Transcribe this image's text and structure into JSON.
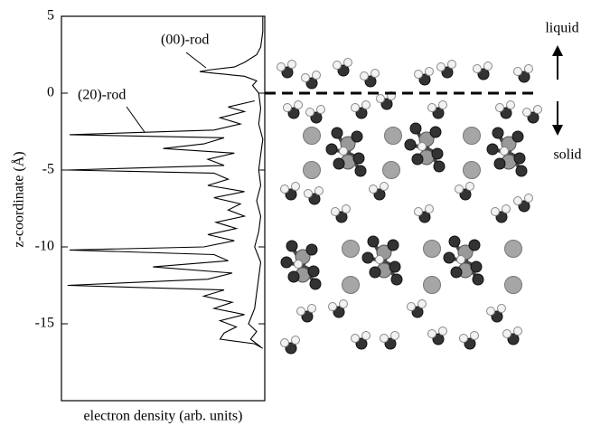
{
  "chart_data": {
    "type": "line",
    "orientation": "vertical",
    "ylabel": "z-coordinate (Å)",
    "xlabel": "electron density (arb. units)",
    "ylim": [
      -20,
      5
    ],
    "yticks": [
      5,
      0,
      -5,
      -10,
      -15
    ],
    "xlim": [
      0,
      1
    ],
    "series": [
      {
        "name": "(00)-rod",
        "color": "#000000",
        "y": [
          5,
          4,
          3,
          2.5,
          2,
          1.7,
          1.5,
          1.4,
          1.3,
          1.1,
          0.8,
          0.5,
          0,
          -1,
          -2,
          -3,
          -4,
          -5,
          -6,
          -7,
          -8,
          -9,
          -10,
          -11,
          -12,
          -13,
          -14,
          -15,
          -15.5,
          -16,
          -16.5
        ],
        "values": [
          0.99,
          0.99,
          0.98,
          0.96,
          0.9,
          0.85,
          0.72,
          0.68,
          0.75,
          0.9,
          0.96,
          0.94,
          0.97,
          0.98,
          0.97,
          0.99,
          0.98,
          0.97,
          0.98,
          0.96,
          0.98,
          0.97,
          0.95,
          0.98,
          0.97,
          0.96,
          0.95,
          0.92,
          0.96,
          0.93,
          0.98
        ]
      },
      {
        "name": "(20)-rod",
        "color": "#000000",
        "y": [
          -0.5,
          -0.9,
          -1.2,
          -1.6,
          -2.0,
          -2.4,
          -2.7,
          -2.9,
          -3.3,
          -3.6,
          -3.9,
          -4.3,
          -4.7,
          -5.0,
          -5.2,
          -5.6,
          -6.0,
          -6.4,
          -6.8,
          -7.2,
          -7.6,
          -8.0,
          -8.4,
          -8.8,
          -9.2,
          -9.6,
          -10.0,
          -10.2,
          -10.5,
          -10.9,
          -11.3,
          -11.7,
          -12.1,
          -12.5,
          -12.8,
          -13.2,
          -13.6,
          -14.0,
          -14.4,
          -14.8,
          -15.2,
          -15.6,
          -16.0,
          -16.3,
          -16.6
        ],
        "values": [
          0.95,
          0.82,
          0.9,
          0.78,
          0.88,
          0.75,
          0.04,
          0.8,
          0.7,
          0.5,
          0.85,
          0.72,
          0.8,
          0.03,
          0.75,
          0.82,
          0.72,
          0.9,
          0.75,
          0.88,
          0.82,
          0.9,
          0.76,
          0.86,
          0.72,
          0.85,
          0.7,
          0.04,
          0.75,
          0.82,
          0.45,
          0.84,
          0.72,
          0.03,
          0.8,
          0.7,
          0.84,
          0.75,
          0.9,
          0.78,
          0.86,
          0.8,
          0.78,
          0.95,
          0.99
        ]
      }
    ],
    "annotations": [
      {
        "text": "(00)-rod"
      },
      {
        "text": "(20)-rod"
      },
      {
        "text": "liquid"
      },
      {
        "text": "solid"
      }
    ]
  }
}
